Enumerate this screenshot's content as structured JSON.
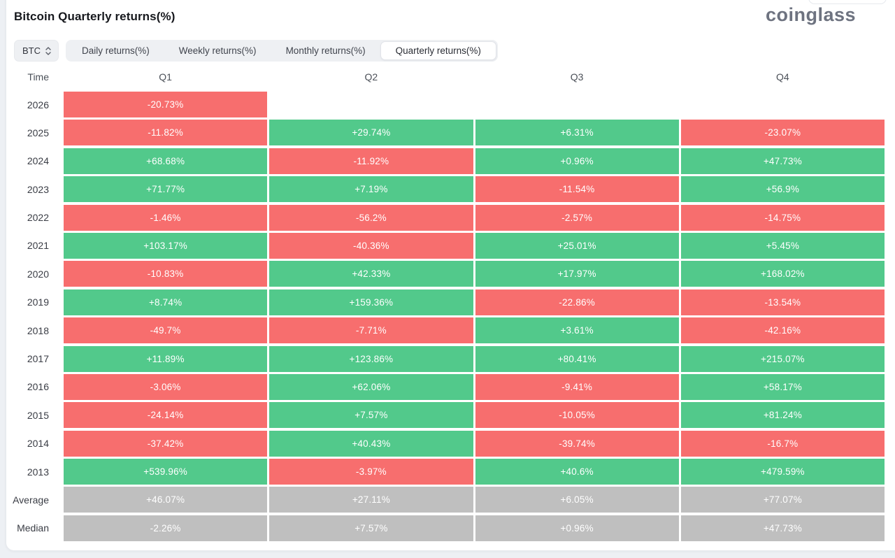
{
  "page": {
    "title": "Bitcoin Quarterly returns(%)",
    "logo": "coinglass"
  },
  "controls": {
    "symbol_select": {
      "value": "BTC"
    },
    "tabs": [
      {
        "label": "Daily returns(%)",
        "active": false
      },
      {
        "label": "Weekly returns(%)",
        "active": false
      },
      {
        "label": "Monthly returns(%)",
        "active": false
      },
      {
        "label": "Quarterly returns(%)",
        "active": true
      }
    ]
  },
  "chart_data": {
    "type": "heatmap",
    "title": "Bitcoin Quarterly returns(%)",
    "columns": [
      "Time",
      "Q1",
      "Q2",
      "Q3",
      "Q4"
    ],
    "colors": {
      "positive": "#52c98b",
      "negative": "#f76e6e",
      "summary": "#bfbfbf"
    },
    "rows": [
      {
        "label": "2026",
        "summary": false,
        "values": [
          "-20.73%",
          null,
          null,
          null
        ]
      },
      {
        "label": "2025",
        "summary": false,
        "values": [
          "-11.82%",
          "+29.74%",
          "+6.31%",
          "-23.07%"
        ]
      },
      {
        "label": "2024",
        "summary": false,
        "values": [
          "+68.68%",
          "-11.92%",
          "+0.96%",
          "+47.73%"
        ]
      },
      {
        "label": "2023",
        "summary": false,
        "values": [
          "+71.77%",
          "+7.19%",
          "-11.54%",
          "+56.9%"
        ]
      },
      {
        "label": "2022",
        "summary": false,
        "values": [
          "-1.46%",
          "-56.2%",
          "-2.57%",
          "-14.75%"
        ]
      },
      {
        "label": "2021",
        "summary": false,
        "values": [
          "+103.17%",
          "-40.36%",
          "+25.01%",
          "+5.45%"
        ]
      },
      {
        "label": "2020",
        "summary": false,
        "values": [
          "-10.83%",
          "+42.33%",
          "+17.97%",
          "+168.02%"
        ]
      },
      {
        "label": "2019",
        "summary": false,
        "values": [
          "+8.74%",
          "+159.36%",
          "-22.86%",
          "-13.54%"
        ]
      },
      {
        "label": "2018",
        "summary": false,
        "values": [
          "-49.7%",
          "-7.71%",
          "+3.61%",
          "-42.16%"
        ]
      },
      {
        "label": "2017",
        "summary": false,
        "values": [
          "+11.89%",
          "+123.86%",
          "+80.41%",
          "+215.07%"
        ]
      },
      {
        "label": "2016",
        "summary": false,
        "values": [
          "-3.06%",
          "+62.06%",
          "-9.41%",
          "+58.17%"
        ]
      },
      {
        "label": "2015",
        "summary": false,
        "values": [
          "-24.14%",
          "+7.57%",
          "-10.05%",
          "+81.24%"
        ]
      },
      {
        "label": "2014",
        "summary": false,
        "values": [
          "-37.42%",
          "+40.43%",
          "-39.74%",
          "-16.7%"
        ]
      },
      {
        "label": "2013",
        "summary": false,
        "values": [
          "+539.96%",
          "-3.97%",
          "+40.6%",
          "+479.59%"
        ]
      },
      {
        "label": "Average",
        "summary": true,
        "values": [
          "+46.07%",
          "+27.11%",
          "+6.05%",
          "+77.07%"
        ]
      },
      {
        "label": "Median",
        "summary": true,
        "values": [
          "-2.26%",
          "+7.57%",
          "+0.96%",
          "+47.73%"
        ]
      }
    ]
  }
}
